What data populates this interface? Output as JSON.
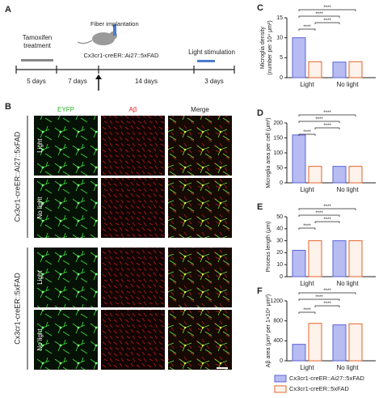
{
  "timeline": {
    "panel": "A",
    "treatment": [
      "Tamoxifen",
      "treatment"
    ],
    "surgery": "Fiber implantation",
    "mouse": "Cx3cr1-creER::Ai27::5xFAD",
    "stimulation": "Light stimulation",
    "durations": [
      "5 days",
      "7 days",
      "14 days",
      "3 days"
    ]
  },
  "images": {
    "panel": "B",
    "channels": [
      "EYFP",
      "Aβ",
      "Merge"
    ],
    "groups": [
      {
        "name": "Cx3cr1-creER::Ai27::5xFAD",
        "rows": [
          "Light",
          "No light"
        ]
      },
      {
        "name": "Cx3cr1-creER::5xFAD",
        "rows": [
          "Light",
          "No light"
        ]
      }
    ]
  },
  "chart_data": [
    {
      "type": "bar",
      "panel": "C",
      "ylabel": [
        "Microglia density",
        "(number per 10⁴ μm²)"
      ],
      "categories": [
        "Light",
        "No light"
      ],
      "series": [
        {
          "color": "#b7bcf2",
          "edgecolor": "#5c63d6",
          "values": [
            10,
            3.9
          ]
        },
        {
          "color": "#fdf3ea",
          "edgecolor": "#e5632b",
          "values": [
            4,
            4
          ]
        }
      ],
      "ylim": [
        0,
        15
      ],
      "yticks": [
        0,
        5,
        10,
        15
      ],
      "significance": [
        "****",
        "****",
        "****",
        "****"
      ]
    },
    {
      "type": "bar",
      "panel": "D",
      "ylabel": "Microglia area per cell (μm²)",
      "categories": [
        "Light",
        "No light"
      ],
      "series": [
        {
          "color": "#b7bcf2",
          "edgecolor": "#5c63d6",
          "values": [
            160,
            55
          ]
        },
        {
          "color": "#fdf3ea",
          "edgecolor": "#e5632b",
          "values": [
            55,
            55
          ]
        }
      ],
      "ylim": [
        0,
        200
      ],
      "yticks": [
        0,
        50,
        100,
        150,
        200
      ],
      "significance": [
        "****",
        "****",
        "****",
        "****"
      ]
    },
    {
      "type": "bar",
      "panel": "E",
      "ylabel": "Process length (μm)",
      "categories": [
        "Light",
        "No light"
      ],
      "series": [
        {
          "color": "#b7bcf2",
          "edgecolor": "#5c63d6",
          "values": [
            22,
            30
          ]
        },
        {
          "color": "#fdf3ea",
          "edgecolor": "#e5632b",
          "values": [
            30,
            30
          ]
        }
      ],
      "ylim": [
        0,
        50
      ],
      "yticks": [
        0,
        10,
        20,
        30,
        40,
        50
      ],
      "significance": [
        "****",
        "****",
        "****",
        "****"
      ]
    },
    {
      "type": "bar",
      "panel": "F",
      "ylabel": "Aβ area (μm² per 1×10⁴ μm²)",
      "categories": [
        "Light",
        "No light"
      ],
      "series": [
        {
          "name": "Cx3cr1-creER::Ai27::5xFAD",
          "color": "#b7bcf2",
          "edgecolor": "#5c63d6",
          "values": [
            330,
            720
          ]
        },
        {
          "name": "Cx3cr1-creER::5xFAD",
          "color": "#fdf3ea",
          "edgecolor": "#e5632b",
          "values": [
            750,
            740
          ]
        }
      ],
      "ylim": [
        0,
        1200
      ],
      "yticks": [
        0,
        400,
        800,
        1200
      ],
      "significance": [
        "****",
        "****",
        "****",
        "****"
      ]
    }
  ]
}
